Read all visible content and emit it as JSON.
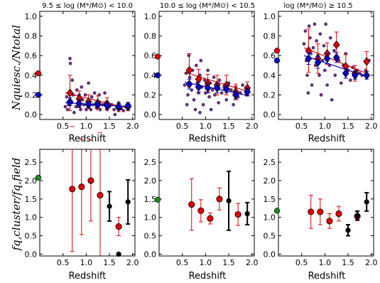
{
  "chart_data": [
    {
      "type": "scatter",
      "title": "9.5 ≤ log (M*/M⊙) < 10.0",
      "xlabel": "Redshift",
      "ylabel": "Nquiesc./Ntotal",
      "xlim": [
        0.0,
        2.05
      ],
      "ylim": [
        -0.05,
        1.05
      ],
      "xticks": [
        "0.5",
        "1.0",
        "1.5",
        "2.0"
      ],
      "yticks": [
        "0.0",
        "0.2",
        "0.4",
        "0.6",
        "0.8",
        "1.0"
      ],
      "field_ref": [
        {
          "x": 0.04,
          "y": 0.42,
          "color": "#e00000"
        },
        {
          "x": 0.04,
          "y": 0.2,
          "color": "#0000cc"
        }
      ],
      "cluster_points": [
        [
          0.55,
          0.08
        ],
        [
          0.58,
          0.18
        ],
        [
          0.6,
          0.05
        ],
        [
          0.62,
          0.1
        ],
        [
          0.65,
          0.57
        ],
        [
          0.66,
          0.52
        ],
        [
          0.68,
          0.12
        ],
        [
          0.7,
          0.35
        ],
        [
          0.72,
          0.2
        ],
        [
          0.74,
          0.02
        ],
        [
          0.78,
          0.08
        ],
        [
          0.8,
          0.25
        ],
        [
          0.82,
          0.12
        ],
        [
          0.85,
          0.2
        ],
        [
          0.88,
          0.05
        ],
        [
          0.9,
          0.28
        ],
        [
          0.92,
          0.15
        ],
        [
          0.95,
          0.1
        ],
        [
          0.98,
          0.2
        ],
        [
          1.0,
          0.05
        ],
        [
          1.02,
          0.1
        ],
        [
          1.05,
          0.32
        ],
        [
          1.08,
          0.13
        ],
        [
          1.1,
          0.05
        ],
        [
          1.12,
          0.18
        ],
        [
          1.15,
          0.1
        ],
        [
          1.18,
          0.22
        ],
        [
          1.22,
          0.07
        ],
        [
          1.25,
          0.12
        ],
        [
          1.28,
          0.2
        ],
        [
          1.3,
          0.05
        ],
        [
          1.35,
          0.1
        ],
        [
          1.4,
          0.22
        ],
        [
          1.42,
          0.12
        ],
        [
          1.45,
          0.05
        ],
        [
          1.5,
          0.08
        ],
        [
          1.55,
          0.1
        ],
        [
          1.6,
          0.05
        ],
        [
          1.62,
          0.0
        ],
        [
          1.66,
          0.08
        ],
        [
          1.7,
          0.12
        ],
        [
          1.75,
          0.06
        ],
        [
          1.8,
          0.04
        ],
        [
          1.85,
          0.08
        ],
        [
          1.9,
          0.05
        ]
      ],
      "series": [
        {
          "name": "red",
          "x": [
            0.65,
            0.85,
            1.05,
            1.25,
            1.45,
            1.7,
            1.9
          ],
          "values": [
            0.22,
            0.16,
            0.13,
            0.12,
            0.11,
            0.07,
            0.08
          ],
          "err": [
            0.18,
            0.08,
            0.07,
            0.07,
            0.06,
            0.04,
            0.04
          ]
        },
        {
          "name": "blue",
          "x": [
            0.65,
            0.85,
            1.05,
            1.25,
            1.45,
            1.7,
            1.9
          ],
          "values": [
            0.13,
            0.11,
            0.1,
            0.1,
            0.09,
            0.08,
            0.09
          ],
          "err": [
            0.04,
            0.04,
            0.03,
            0.03,
            0.03,
            0.03,
            0.03
          ]
        }
      ],
      "fit_lines": [
        {
          "color": "#e00000",
          "from": [
            0.55,
            0.22
          ],
          "to": [
            1.95,
            0.06
          ]
        },
        {
          "color": "#0000cc",
          "from": [
            0.55,
            0.12
          ],
          "to": [
            1.95,
            0.08
          ]
        }
      ]
    },
    {
      "type": "scatter",
      "title": "10.0 ≤ log (M*/M⊙) < 10.5",
      "xlabel": "Redshift",
      "xlim": [
        0.0,
        2.05
      ],
      "ylim": [
        -0.05,
        1.05
      ],
      "xticks": [
        "0.5",
        "1.0",
        "1.5",
        "2.0"
      ],
      "yticks": [
        "0.0",
        "0.2",
        "0.4",
        "0.6",
        "0.8",
        "1.0"
      ],
      "field_ref": [
        {
          "x": 0.04,
          "y": 0.59,
          "color": "#e00000"
        },
        {
          "x": 0.04,
          "y": 0.4,
          "color": "#0000cc"
        }
      ],
      "cluster_points": [
        [
          0.55,
          0.3
        ],
        [
          0.58,
          0.42
        ],
        [
          0.6,
          0.1
        ],
        [
          0.62,
          0.2
        ],
        [
          0.64,
          0.6
        ],
        [
          0.66,
          0.38
        ],
        [
          0.7,
          0.25
        ],
        [
          0.72,
          0.45
        ],
        [
          0.75,
          0.15
        ],
        [
          0.78,
          0.05
        ],
        [
          0.8,
          0.5
        ],
        [
          0.82,
          0.32
        ],
        [
          0.85,
          0.22
        ],
        [
          0.88,
          0.4
        ],
        [
          0.9,
          0.55
        ],
        [
          0.92,
          0.28
        ],
        [
          0.95,
          0.1
        ],
        [
          0.98,
          0.35
        ],
        [
          1.0,
          0.22
        ],
        [
          1.02,
          0.3
        ],
        [
          1.05,
          0.45
        ],
        [
          1.08,
          0.18
        ],
        [
          1.1,
          0.32
        ],
        [
          1.12,
          0.05
        ],
        [
          1.15,
          0.25
        ],
        [
          1.18,
          0.38
        ],
        [
          1.2,
          0.2
        ],
        [
          1.25,
          0.3
        ],
        [
          1.28,
          0.12
        ],
        [
          1.3,
          0.35
        ],
        [
          1.35,
          0.22
        ],
        [
          1.4,
          0.28
        ],
        [
          1.45,
          0.15
        ],
        [
          1.5,
          0.32
        ],
        [
          1.55,
          0.25
        ],
        [
          1.6,
          0.1
        ],
        [
          1.65,
          0.28
        ],
        [
          1.7,
          0.18
        ],
        [
          1.75,
          0.22
        ],
        [
          1.8,
          0.3
        ],
        [
          1.88,
          0.2
        ],
        [
          1.92,
          0.25
        ],
        [
          0.88,
          0.02
        ]
      ],
      "series": [
        {
          "name": "red",
          "x": [
            0.65,
            0.85,
            1.05,
            1.25,
            1.45,
            1.65,
            1.9
          ],
          "values": [
            0.45,
            0.36,
            0.32,
            0.3,
            0.3,
            0.23,
            0.27
          ],
          "err": [
            0.17,
            0.1,
            0.09,
            0.1,
            0.1,
            0.08,
            0.06
          ]
        },
        {
          "name": "blue",
          "x": [
            0.65,
            0.85,
            1.05,
            1.25,
            1.45,
            1.65,
            1.9
          ],
          "values": [
            0.31,
            0.28,
            0.27,
            0.27,
            0.26,
            0.2,
            0.23
          ],
          "err": [
            0.05,
            0.05,
            0.05,
            0.05,
            0.04,
            0.04,
            0.04
          ]
        }
      ],
      "fit_lines": [
        {
          "color": "#e00000",
          "from": [
            0.55,
            0.43
          ],
          "to": [
            1.95,
            0.23
          ]
        },
        {
          "color": "#0000cc",
          "from": [
            0.55,
            0.33
          ],
          "to": [
            1.95,
            0.19
          ]
        }
      ]
    },
    {
      "type": "scatter",
      "title": "log (M*/M⊙) ≥ 10.5",
      "xlabel": "Redshift",
      "xlim": [
        0.0,
        2.05
      ],
      "ylim": [
        -0.05,
        1.05
      ],
      "xticks": [
        "0.5",
        "1.0",
        "1.5",
        "2.0"
      ],
      "yticks": [
        "0.0",
        "0.2",
        "0.4",
        "0.6",
        "0.8",
        "1.0"
      ],
      "field_ref": [
        {
          "x": 0.04,
          "y": 0.65,
          "color": "#e00000"
        },
        {
          "x": 0.04,
          "y": 0.55,
          "color": "#0000cc"
        }
      ],
      "cluster_points": [
        [
          0.55,
          0.72
        ],
        [
          0.58,
          0.85
        ],
        [
          0.6,
          0.55
        ],
        [
          0.62,
          0.4
        ],
        [
          0.64,
          0.22
        ],
        [
          0.66,
          0.9
        ],
        [
          0.68,
          0.78
        ],
        [
          0.7,
          0.62
        ],
        [
          0.72,
          0.3
        ],
        [
          0.75,
          0.68
        ],
        [
          0.78,
          0.92
        ],
        [
          0.8,
          0.5
        ],
        [
          0.82,
          0.75
        ],
        [
          0.85,
          0.6
        ],
        [
          0.88,
          0.4
        ],
        [
          0.9,
          0.82
        ],
        [
          0.92,
          0.2
        ],
        [
          0.95,
          0.55
        ],
        [
          0.98,
          0.7
        ],
        [
          1.0,
          0.45
        ],
        [
          1.02,
          0.92
        ],
        [
          1.05,
          0.3
        ],
        [
          1.08,
          0.62
        ],
        [
          1.1,
          0.5
        ],
        [
          1.12,
          0.78
        ],
        [
          1.15,
          0.15
        ],
        [
          1.2,
          0.65
        ],
        [
          1.22,
          0.4
        ],
        [
          1.25,
          0.72
        ],
        [
          1.3,
          0.55
        ],
        [
          1.35,
          0.32
        ],
        [
          1.4,
          0.5
        ],
        [
          1.45,
          0.62
        ],
        [
          1.5,
          0.45
        ],
        [
          1.55,
          0.35
        ],
        [
          1.6,
          0.48
        ],
        [
          1.65,
          0.38
        ],
        [
          1.7,
          0.45
        ],
        [
          1.75,
          0.42
        ],
        [
          1.8,
          0.4
        ],
        [
          1.88,
          0.45
        ],
        [
          1.95,
          0.55
        ]
      ],
      "series": [
        {
          "name": "red",
          "x": [
            0.65,
            0.85,
            1.05,
            1.25,
            1.45,
            1.65,
            1.9
          ],
          "values": [
            0.65,
            0.57,
            0.62,
            0.71,
            0.49,
            0.42,
            0.54
          ],
          "err": [
            0.22,
            0.15,
            0.11,
            0.13,
            0.12,
            0.08,
            0.1
          ]
        },
        {
          "name": "blue",
          "x": [
            0.65,
            0.85,
            1.05,
            1.25,
            1.45,
            1.65,
            1.9
          ],
          "values": [
            0.57,
            0.53,
            0.57,
            0.58,
            0.42,
            0.4,
            0.4
          ],
          "err": [
            0.06,
            0.06,
            0.05,
            0.05,
            0.05,
            0.04,
            0.04
          ]
        }
      ],
      "fit_lines": [
        {
          "color": "#e00000",
          "from": [
            0.55,
            0.68
          ],
          "to": [
            1.95,
            0.41
          ]
        },
        {
          "color": "#0000cc",
          "from": [
            0.55,
            0.6
          ],
          "to": [
            1.95,
            0.38
          ]
        }
      ]
    },
    {
      "type": "scatter",
      "xlabel": "Redshift",
      "ylabel": "fq,cluster/fq,field",
      "xlim": [
        0.0,
        2.05
      ],
      "ylim": [
        -0.05,
        2.85
      ],
      "xticks": [
        "0.5",
        "1.0",
        "1.5",
        "2.0"
      ],
      "yticks": [
        "0.0",
        "0.5",
        "1.0",
        "1.5",
        "2.0",
        "2.5"
      ],
      "field_ref": [
        {
          "x": 0.04,
          "y": 2.08,
          "color": "#1a8a1a"
        }
      ],
      "series": [
        {
          "name": "red",
          "x": [
            0.7,
            0.9,
            1.1,
            1.3,
            1.7
          ],
          "values": [
            1.77,
            1.83,
            2.0,
            1.6,
            0.75
          ],
          "err": [
            1.7,
            1.3,
            1.1,
            1.7,
            0.25
          ]
        },
        {
          "name": "black",
          "x": [
            1.5,
            1.7,
            1.9
          ],
          "values": [
            1.3,
            0.0,
            1.42
          ],
          "err": [
            0.4,
            0.0,
            0.6
          ]
        }
      ]
    },
    {
      "type": "scatter",
      "xlabel": "Redshift",
      "xlim": [
        0.0,
        2.05
      ],
      "ylim": [
        -0.05,
        2.85
      ],
      "xticks": [
        "0.5",
        "1.0",
        "1.5",
        "2.0"
      ],
      "yticks": [
        "0.0",
        "0.5",
        "1.0",
        "1.5",
        "2.0",
        "2.5"
      ],
      "field_ref": [
        {
          "x": 0.04,
          "y": 1.48,
          "color": "#1a8a1a"
        }
      ],
      "series": [
        {
          "name": "red",
          "x": [
            0.7,
            0.9,
            1.1,
            1.3,
            1.7
          ],
          "values": [
            1.35,
            1.18,
            0.97,
            1.5,
            1.08
          ],
          "err": [
            0.7,
            0.3,
            0.15,
            0.3,
            0.3
          ]
        },
        {
          "name": "black",
          "x": [
            1.5,
            1.9
          ],
          "values": [
            1.45,
            1.1
          ],
          "err": [
            0.8,
            0.3
          ]
        }
      ]
    },
    {
      "type": "scatter",
      "xlabel": "Redshift",
      "xlim": [
        0.0,
        2.05
      ],
      "ylim": [
        -0.05,
        2.85
      ],
      "xticks": [
        "0.5",
        "1.0",
        "1.5",
        "2.0"
      ],
      "yticks": [
        "0.0",
        "0.5",
        "1.0",
        "1.5",
        "2.0",
        "2.5"
      ],
      "field_ref": [
        {
          "x": 0.04,
          "y": 1.18,
          "color": "#1a8a1a"
        }
      ],
      "series": [
        {
          "name": "red",
          "x": [
            0.7,
            0.9,
            1.1,
            1.3,
            1.7
          ],
          "values": [
            1.15,
            1.15,
            0.9,
            1.1,
            1.03
          ],
          "err": [
            0.45,
            0.35,
            0.2,
            0.2,
            0.12
          ]
        },
        {
          "name": "black",
          "x": [
            1.5,
            1.7,
            1.9
          ],
          "values": [
            0.65,
            1.05,
            1.42
          ],
          "err": [
            0.15,
            0.12,
            0.25
          ]
        }
      ]
    }
  ]
}
